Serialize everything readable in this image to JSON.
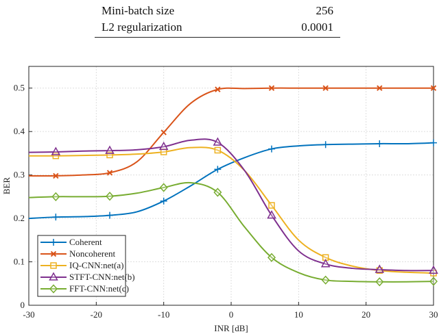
{
  "table": {
    "rows": [
      {
        "label": "Mini-batch size",
        "value": "256"
      },
      {
        "label": "L2 regularization",
        "value": "0.0001"
      }
    ]
  },
  "chart_data": {
    "type": "line",
    "xlabel": "INR [dB]",
    "ylabel": "BER",
    "xlim": [
      -30,
      30
    ],
    "ylim": [
      0,
      0.55
    ],
    "xticks": [
      -30,
      -20,
      -10,
      0,
      10,
      20,
      30
    ],
    "yticks": [
      0,
      0.1,
      0.2,
      0.3,
      0.4,
      0.5
    ],
    "grid": true,
    "legend_placement": "bottom-left",
    "x": [
      -30,
      -26,
      -22,
      -18,
      -14,
      -10,
      -6,
      -2,
      2,
      6,
      10,
      14,
      18,
      22,
      26,
      30
    ],
    "marker_x": [
      -26,
      -18,
      -10,
      -2,
      6,
      14,
      22,
      30
    ],
    "series": [
      {
        "name": "Coherent",
        "color": "#0072BD",
        "marker": "plus",
        "values": [
          0.2,
          0.203,
          0.204,
          0.207,
          0.215,
          0.24,
          0.275,
          0.313,
          0.34,
          0.36,
          0.367,
          0.37,
          0.371,
          0.372,
          0.372,
          0.374
        ]
      },
      {
        "name": "Noncoherent",
        "color": "#D95319",
        "marker": "x",
        "values": [
          0.298,
          0.298,
          0.3,
          0.305,
          0.33,
          0.398,
          0.465,
          0.497,
          0.499,
          0.5,
          0.5,
          0.5,
          0.5,
          0.5,
          0.5,
          0.5
        ]
      },
      {
        "name": "IQ-CNN:net(a)",
        "color": "#EDB120",
        "marker": "square",
        "values": [
          0.344,
          0.344,
          0.345,
          0.346,
          0.348,
          0.353,
          0.363,
          0.357,
          0.31,
          0.23,
          0.15,
          0.11,
          0.09,
          0.08,
          0.076,
          0.074
        ]
      },
      {
        "name": "STFT-CNN:net(b)",
        "color": "#7E2F8E",
        "marker": "triangle",
        "values": [
          0.352,
          0.353,
          0.355,
          0.356,
          0.358,
          0.365,
          0.38,
          0.375,
          0.31,
          0.207,
          0.125,
          0.095,
          0.085,
          0.082,
          0.08,
          0.08
        ]
      },
      {
        "name": "FFT-CNN:net(c)",
        "color": "#77AC30",
        "marker": "diamond",
        "values": [
          0.248,
          0.25,
          0.25,
          0.251,
          0.258,
          0.271,
          0.282,
          0.26,
          0.18,
          0.11,
          0.075,
          0.058,
          0.055,
          0.054,
          0.054,
          0.055
        ]
      }
    ]
  }
}
